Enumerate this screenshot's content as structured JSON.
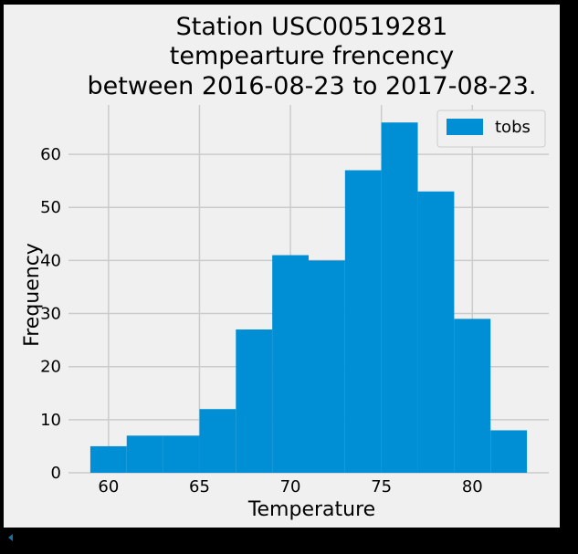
{
  "chart_data": {
    "type": "histogram",
    "title": [
      "Station USC00519281",
      "tempearture frencency",
      "between 2016-08-23 to 2017-08-23."
    ],
    "xlabel": "Temperature",
    "ylabel": "Frequency",
    "xlim": [
      57.8,
      84.2
    ],
    "ylim": [
      0,
      69.3
    ],
    "xticks": [
      60,
      65,
      70,
      75,
      80
    ],
    "yticks": [
      0,
      10,
      20,
      30,
      40,
      50,
      60
    ],
    "bins": [
      {
        "from": 59.0,
        "to": 61.0,
        "count": 5
      },
      {
        "from": 61.0,
        "to": 63.0,
        "count": 7
      },
      {
        "from": 63.0,
        "to": 65.0,
        "count": 7
      },
      {
        "from": 65.0,
        "to": 67.0,
        "count": 12
      },
      {
        "from": 67.0,
        "to": 69.0,
        "count": 27
      },
      {
        "from": 69.0,
        "to": 71.0,
        "count": 41
      },
      {
        "from": 71.0,
        "to": 73.0,
        "count": 40
      },
      {
        "from": 73.0,
        "to": 75.0,
        "count": 57
      },
      {
        "from": 75.0,
        "to": 77.0,
        "count": 66
      },
      {
        "from": 77.0,
        "to": 79.0,
        "count": 53
      },
      {
        "from": 79.0,
        "to": 81.0,
        "count": 29
      },
      {
        "from": 81.0,
        "to": 83.0,
        "count": 8
      }
    ],
    "legend": {
      "label": "tobs",
      "position": "top-right"
    },
    "grid": true,
    "bar_color": "#008fd5",
    "grid_color": "#cbcbcb",
    "background_color": "#f0f0f0"
  }
}
